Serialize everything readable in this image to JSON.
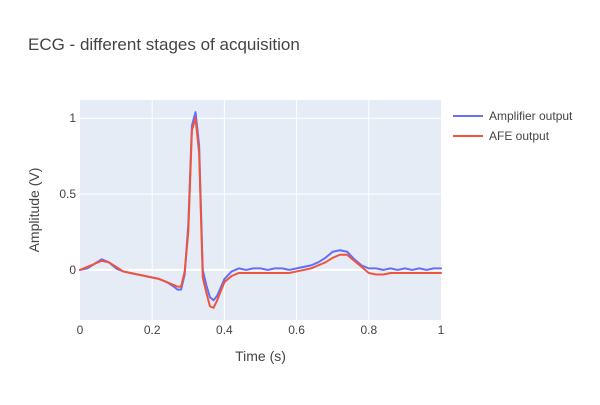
{
  "chart_data": {
    "type": "line",
    "title": "ECG - different stages of acquisition",
    "xlabel": "Time (s)",
    "ylabel": "Amplitude (V)",
    "xlim": [
      0,
      1
    ],
    "ylim": [
      -0.33,
      1.12
    ],
    "x_ticks": [
      "0",
      "0.2",
      "0.4",
      "0.6",
      "0.8",
      "1"
    ],
    "y_ticks": [
      "0",
      "0.5",
      "1"
    ],
    "grid": true,
    "legend_position": "top-right",
    "x": [
      0,
      0.02,
      0.04,
      0.06,
      0.08,
      0.1,
      0.12,
      0.14,
      0.16,
      0.18,
      0.2,
      0.22,
      0.24,
      0.26,
      0.27,
      0.28,
      0.29,
      0.3,
      0.31,
      0.32,
      0.33,
      0.34,
      0.35,
      0.36,
      0.37,
      0.38,
      0.4,
      0.42,
      0.44,
      0.46,
      0.48,
      0.5,
      0.52,
      0.54,
      0.56,
      0.58,
      0.6,
      0.62,
      0.64,
      0.66,
      0.68,
      0.7,
      0.72,
      0.74,
      0.76,
      0.78,
      0.8,
      0.82,
      0.84,
      0.86,
      0.88,
      0.9,
      0.92,
      0.94,
      0.96,
      0.98,
      1.0
    ],
    "series": [
      {
        "name": "Amplifier output",
        "color": "#636efa",
        "values": [
          0.0,
          0.01,
          0.04,
          0.07,
          0.05,
          0.01,
          -0.01,
          -0.02,
          -0.03,
          -0.04,
          -0.05,
          -0.06,
          -0.08,
          -0.11,
          -0.13,
          -0.13,
          -0.03,
          0.3,
          0.95,
          1.04,
          0.82,
          0.0,
          -0.1,
          -0.18,
          -0.2,
          -0.17,
          -0.06,
          -0.01,
          0.01,
          0.0,
          0.01,
          0.01,
          0.0,
          0.01,
          0.01,
          0.0,
          0.01,
          0.02,
          0.03,
          0.05,
          0.08,
          0.12,
          0.13,
          0.12,
          0.07,
          0.03,
          0.01,
          0.01,
          0.0,
          0.01,
          0.0,
          0.01,
          0.0,
          0.01,
          0.0,
          0.01,
          0.01
        ]
      },
      {
        "name": "AFE output",
        "color": "#ef553b",
        "values": [
          0.0,
          0.02,
          0.04,
          0.06,
          0.05,
          0.02,
          -0.01,
          -0.02,
          -0.03,
          -0.04,
          -0.05,
          -0.06,
          -0.08,
          -0.1,
          -0.11,
          -0.11,
          -0.01,
          0.25,
          0.92,
          1.0,
          0.77,
          -0.05,
          -0.15,
          -0.24,
          -0.25,
          -0.2,
          -0.08,
          -0.04,
          -0.02,
          -0.02,
          -0.02,
          -0.02,
          -0.02,
          -0.02,
          -0.02,
          -0.02,
          -0.01,
          0.0,
          0.01,
          0.03,
          0.05,
          0.08,
          0.1,
          0.1,
          0.06,
          0.02,
          -0.02,
          -0.03,
          -0.03,
          -0.02,
          -0.02,
          -0.02,
          -0.02,
          -0.02,
          -0.02,
          -0.02,
          -0.02
        ]
      }
    ]
  }
}
